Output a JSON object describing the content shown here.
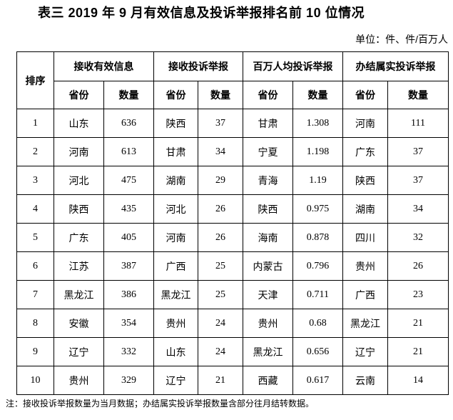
{
  "title": "表三 2019 年 9 月有效信息及投诉举报排名前 10 位情况",
  "unit_label": "单位：件、件/百万人",
  "footnote": "注：接收投诉举报数量为当月数据；办结属实投诉举报数量含部分往月结转数据。",
  "table": {
    "rank_header": "排序",
    "groups": [
      {
        "label": "接收有效信息",
        "sub": [
          "省份",
          "数量"
        ]
      },
      {
        "label": "接收投诉举报",
        "sub": [
          "省份",
          "数量"
        ]
      },
      {
        "label": "百万人均投诉举报",
        "sub": [
          "省份",
          "数量"
        ]
      },
      {
        "label": "办结属实投诉举报",
        "sub": [
          "省份",
          "数量"
        ]
      }
    ],
    "rows": [
      {
        "rank": "1",
        "cells": [
          "山东",
          "636",
          "陕西",
          "37",
          "甘肃",
          "1.308",
          "河南",
          "111"
        ]
      },
      {
        "rank": "2",
        "cells": [
          "河南",
          "613",
          "甘肃",
          "34",
          "宁夏",
          "1.198",
          "广东",
          "37"
        ]
      },
      {
        "rank": "3",
        "cells": [
          "河北",
          "475",
          "湖南",
          "29",
          "青海",
          "1.19",
          "陕西",
          "37"
        ]
      },
      {
        "rank": "4",
        "cells": [
          "陕西",
          "435",
          "河北",
          "26",
          "陕西",
          "0.975",
          "湖南",
          "34"
        ]
      },
      {
        "rank": "5",
        "cells": [
          "广东",
          "405",
          "河南",
          "26",
          "海南",
          "0.878",
          "四川",
          "32"
        ]
      },
      {
        "rank": "6",
        "cells": [
          "江苏",
          "387",
          "广西",
          "25",
          "内蒙古",
          "0.796",
          "贵州",
          "26"
        ]
      },
      {
        "rank": "7",
        "cells": [
          "黑龙江",
          "386",
          "黑龙江",
          "25",
          "天津",
          "0.711",
          "广西",
          "23"
        ]
      },
      {
        "rank": "8",
        "cells": [
          "安徽",
          "354",
          "贵州",
          "24",
          "贵州",
          "0.68",
          "黑龙江",
          "21"
        ]
      },
      {
        "rank": "9",
        "cells": [
          "辽宁",
          "332",
          "山东",
          "24",
          "黑龙江",
          "0.656",
          "辽宁",
          "21"
        ]
      },
      {
        "rank": "10",
        "cells": [
          "贵州",
          "329",
          "辽宁",
          "21",
          "西藏",
          "0.617",
          "云南",
          "14"
        ]
      }
    ]
  }
}
